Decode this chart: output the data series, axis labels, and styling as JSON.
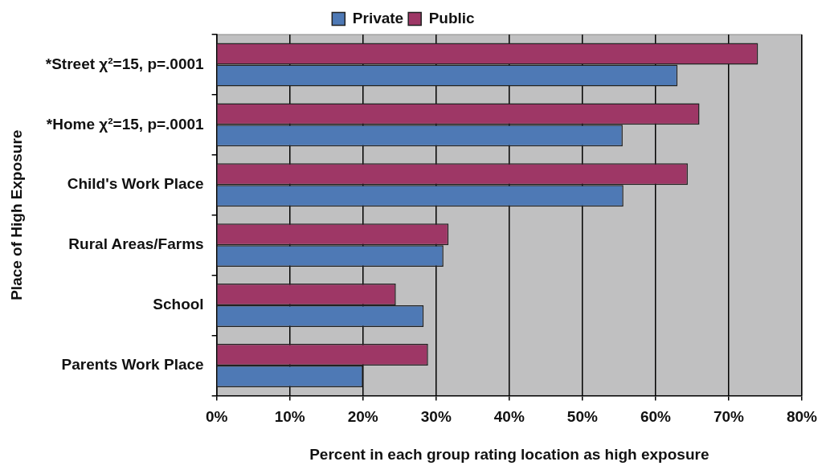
{
  "chart_data": {
    "type": "bar",
    "orientation": "horizontal",
    "xlabel": "Percent in each group rating location as high exposure",
    "ylabel": "Place of High Exposure",
    "categories": [
      "*Street χ²=15, p=.0001",
      "*Home χ²=15, p=.0001",
      "Child's Work Place",
      "Rural Areas/Farms",
      "School",
      "Parents Work Place"
    ],
    "series": [
      {
        "name": "Private",
        "color": "#4e79b5",
        "values": [
          63,
          55.5,
          55.6,
          31,
          28.3,
          20
        ]
      },
      {
        "name": "Public",
        "color": "#9e3766",
        "values": [
          74,
          66,
          64.4,
          31.7,
          24.5,
          28.9
        ]
      }
    ],
    "xlim": [
      0,
      80
    ],
    "xticks": [
      {
        "value": 0,
        "label": "0%"
      },
      {
        "value": 10,
        "label": "10%"
      },
      {
        "value": 20,
        "label": "20%"
      },
      {
        "value": 30,
        "label": "30%"
      },
      {
        "value": 40,
        "label": "40%"
      },
      {
        "value": 50,
        "label": "50%"
      },
      {
        "value": 60,
        "label": "60%"
      },
      {
        "value": 70,
        "label": "70%"
      },
      {
        "value": 80,
        "label": "80%"
      }
    ],
    "grid": "x",
    "legend": "top"
  }
}
